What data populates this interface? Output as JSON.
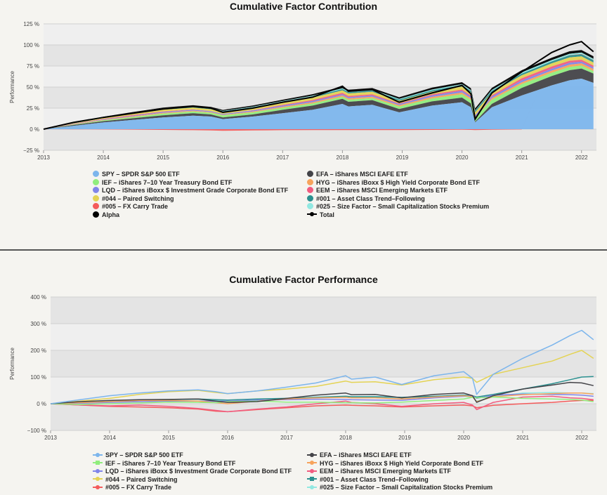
{
  "chart_data": [
    {
      "type": "area",
      "title": "Cumulative Factor Contribution",
      "ylabel": "Performance",
      "xlim": [
        2013.0,
        2022.25
      ],
      "ylim": [
        -25,
        125
      ],
      "yticks": [
        -25,
        0,
        25,
        50,
        75,
        100,
        125
      ],
      "ytick_labels": [
        "−25 %",
        "0 %",
        "25 %",
        "50 %",
        "75 %",
        "100 %",
        "125 %"
      ],
      "xticks": [
        "2013",
        "2014",
        "2015",
        "2016",
        "2017",
        "2018",
        "2019",
        "2020",
        "2021",
        "2022"
      ],
      "stacked": true,
      "x": [
        2013.0,
        2013.5,
        2014.0,
        2014.5,
        2015.0,
        2015.5,
        2015.8,
        2016.0,
        2016.5,
        2017.0,
        2017.5,
        2018.0,
        2018.1,
        2018.5,
        2018.95,
        2019.5,
        2020.0,
        2020.15,
        2020.22,
        2020.5,
        2021.0,
        2021.5,
        2021.8,
        2022.0,
        2022.2
      ],
      "series": [
        {
          "name": "SPY – SPDR S&P 500 ETF",
          "color": "#7cb5ec",
          "values": [
            0,
            4,
            8,
            11,
            14,
            16,
            15,
            12,
            15,
            19,
            23,
            30,
            27,
            29,
            20,
            28,
            32,
            26,
            8,
            26,
            40,
            52,
            58,
            60,
            55
          ]
        },
        {
          "name": "EFA – iShares MSCI EAFE ETF",
          "color": "#434348",
          "values": [
            0,
            1,
            1.5,
            2,
            2.5,
            3,
            2.5,
            2,
            2.5,
            4,
            5,
            6,
            5.5,
            5.5,
            4,
            5,
            5.5,
            4.5,
            1,
            4,
            9,
            11,
            12,
            12,
            11
          ]
        },
        {
          "name": "IEF – iShares 7–10 Year Treasury Bond ETF",
          "color": "#90ed7d",
          "values": [
            0,
            0.5,
            1,
            1.5,
            2,
            2,
            2,
            2.5,
            2.5,
            2.5,
            2.5,
            2.5,
            2.5,
            2.5,
            3,
            3.5,
            4,
            4.5,
            5,
            5,
            4.5,
            4,
            4,
            3.5,
            3
          ]
        },
        {
          "name": "HYG – iShares iBoxx $ High Yield Corporate Bond ETF",
          "color": "#f7a35c",
          "values": [
            0,
            0.3,
            0.6,
            0.8,
            1,
            1,
            0.8,
            0.6,
            1,
            1.2,
            1.5,
            1.6,
            1.6,
            1.6,
            1.4,
            1.8,
            2,
            1.8,
            0.8,
            1.8,
            2.2,
            2.5,
            2.6,
            2.6,
            2.4
          ]
        },
        {
          "name": "LQD – iShares iBoxx $ Investment Grade Corporate Bond ETF",
          "color": "#8085e9",
          "values": [
            0,
            0.3,
            0.6,
            0.8,
            1,
            1,
            1,
            1,
            1.2,
            1.3,
            1.4,
            1.4,
            1.4,
            1.4,
            1.4,
            1.8,
            2,
            2,
            1.5,
            2,
            2.2,
            2.2,
            2.2,
            2.1,
            2
          ]
        },
        {
          "name": "EEM – iShares MSCI Emerging Markets ETF",
          "color": "#f15c80",
          "values": [
            0,
            0.3,
            0.5,
            0.7,
            0.6,
            0.4,
            0.2,
            0,
            0.4,
            0.8,
            1.2,
            1.6,
            1.4,
            1.3,
            0.8,
            1.2,
            1.5,
            1.2,
            0.2,
            1.4,
            2.5,
            2.6,
            2.4,
            2.2,
            2
          ]
        },
        {
          "name": "#044 – Paired Switching",
          "color": "#e4d354",
          "values": [
            0,
            0.5,
            1,
            1.5,
            2,
            2.2,
            2.2,
            2.2,
            2.4,
            2.6,
            2.8,
            3,
            3,
            3,
            3,
            3.2,
            3.5,
            3.5,
            3.5,
            3.5,
            3.5,
            3.8,
            4,
            4,
            3.8
          ]
        },
        {
          "name": "#001 – Asset Class Trend–Following",
          "color": "#2b908f",
          "values": [
            0,
            0.3,
            0.6,
            0.8,
            1,
            1,
            1,
            1,
            1.1,
            1.2,
            1.4,
            1.5,
            1.5,
            1.5,
            1.5,
            1.6,
            1.8,
            1.8,
            1.8,
            1.9,
            2,
            2.3,
            2.5,
            2.6,
            2.6
          ]
        },
        {
          "name": "#005 – FX Carry Trade",
          "color": "#f45b5b",
          "values": [
            0,
            -0.2,
            -0.3,
            -0.5,
            -0.8,
            -1.2,
            -1.5,
            -1.8,
            -1.5,
            -1.2,
            -1,
            -1,
            -1,
            -1,
            -1,
            -0.8,
            -0.6,
            -0.8,
            -1,
            -0.6,
            -0.3,
            0,
            0.2,
            0.3,
            0.3
          ]
        },
        {
          "name": "#025 – Size Factor – Small Capitalization Stocks Premium",
          "color": "#91e8e1",
          "values": [
            0,
            0.2,
            0.4,
            0.5,
            0.6,
            0.6,
            0.5,
            0.4,
            0.6,
            0.8,
            1,
            1,
            1,
            1,
            0.8,
            1,
            1.1,
            1,
            0.5,
            1,
            1.5,
            1.6,
            1.6,
            1.6,
            1.5
          ]
        },
        {
          "name": "Alpha",
          "color": "#000000",
          "values": [
            0,
            0.3,
            0.6,
            0.8,
            1,
            1.2,
            1.2,
            1.2,
            1.4,
            1.6,
            1.8,
            2,
            2,
            2,
            2,
            2.2,
            2.4,
            2.4,
            2.4,
            2.5,
            2.6,
            2.8,
            3,
            3,
            3
          ]
        }
      ],
      "total": {
        "name": "Total",
        "color": "#000000",
        "values": [
          0,
          8,
          14,
          19,
          24,
          27,
          25,
          20,
          25,
          32,
          38,
          51,
          45,
          47,
          32,
          43,
          52,
          42,
          12,
          43,
          68,
          91,
          100,
          104,
          92
        ]
      }
    },
    {
      "type": "line",
      "title": "Cumulative Factor Performance",
      "ylabel": "Performance",
      "xlim": [
        2013.0,
        2022.25
      ],
      "ylim": [
        -100,
        400
      ],
      "yticks": [
        -100,
        0,
        100,
        200,
        300,
        400
      ],
      "ytick_labels": [
        "−100 %",
        "0 %",
        "100 %",
        "200 %",
        "300 %",
        "400 %"
      ],
      "xticks": [
        "2013",
        "2014",
        "2015",
        "2016",
        "2017",
        "2018",
        "2019",
        "2020",
        "2021",
        "2022"
      ],
      "x": [
        2013.0,
        2013.5,
        2014.0,
        2014.5,
        2015.0,
        2015.5,
        2015.8,
        2016.0,
        2016.5,
        2017.0,
        2017.5,
        2018.0,
        2018.1,
        2018.5,
        2018.95,
        2019.5,
        2020.0,
        2020.15,
        2020.22,
        2020.5,
        2021.0,
        2021.5,
        2021.8,
        2022.0,
        2022.2
      ],
      "series": [
        {
          "name": "SPY – SPDR S&P 500 ETF",
          "color": "#7cb5ec",
          "marker": "circle",
          "values": [
            0,
            15,
            30,
            40,
            48,
            52,
            45,
            38,
            48,
            62,
            78,
            105,
            92,
            100,
            72,
            105,
            120,
            95,
            35,
            110,
            170,
            220,
            255,
            275,
            240
          ]
        },
        {
          "name": "EFA – iShares MSCI EAFE ETF",
          "color": "#434348",
          "marker": "diamond",
          "values": [
            0,
            8,
            12,
            15,
            16,
            18,
            10,
            5,
            8,
            20,
            32,
            40,
            34,
            35,
            22,
            35,
            40,
            30,
            5,
            30,
            55,
            70,
            80,
            78,
            68
          ]
        },
        {
          "name": "IEF – iShares 7–10 Year Treasury Bond ETF",
          "color": "#90ed7d",
          "marker": "square",
          "values": [
            0,
            -3,
            0,
            3,
            6,
            5,
            4,
            8,
            10,
            6,
            6,
            4,
            4,
            3,
            6,
            12,
            18,
            24,
            22,
            25,
            20,
            18,
            16,
            14,
            8
          ]
        },
        {
          "name": "HYG – iShares iBoxx $ High Yield Corporate Bond ETF",
          "color": "#f7a35c",
          "marker": "triangle",
          "values": [
            0,
            4,
            8,
            12,
            12,
            10,
            4,
            0,
            10,
            18,
            22,
            24,
            22,
            22,
            18,
            25,
            30,
            26,
            8,
            26,
            34,
            38,
            40,
            40,
            36
          ]
        },
        {
          "name": "LQD – iShares iBoxx $ Investment Grade Corporate Bond ETF",
          "color": "#8085e9",
          "marker": "triangle-down",
          "values": [
            0,
            2,
            5,
            8,
            10,
            10,
            9,
            10,
            14,
            15,
            17,
            16,
            15,
            14,
            13,
            22,
            28,
            30,
            20,
            32,
            36,
            35,
            34,
            32,
            28
          ]
        },
        {
          "name": "EEM – iShares MSCI Emerging Markets ETF",
          "color": "#f15c80",
          "marker": "circle",
          "values": [
            0,
            -5,
            -8,
            -5,
            -10,
            -18,
            -25,
            -30,
            -20,
            -12,
            0,
            10,
            5,
            0,
            -10,
            0,
            5,
            -5,
            -22,
            5,
            25,
            28,
            22,
            20,
            15
          ]
        },
        {
          "name": "#044 – Paired Switching",
          "color": "#e4d354",
          "marker": "diamond",
          "values": [
            0,
            10,
            20,
            35,
            45,
            50,
            42,
            38,
            48,
            55,
            65,
            85,
            80,
            82,
            70,
            90,
            100,
            95,
            80,
            110,
            135,
            160,
            185,
            200,
            170
          ]
        },
        {
          "name": "#001 – Asset Class Trend–Following",
          "color": "#2b908f",
          "marker": "square",
          "values": [
            0,
            3,
            8,
            12,
            15,
            18,
            15,
            14,
            18,
            20,
            24,
            28,
            26,
            26,
            24,
            28,
            32,
            30,
            25,
            35,
            55,
            75,
            90,
            100,
            102
          ]
        },
        {
          "name": "#005 – FX Carry Trade",
          "color": "#f45b5b",
          "marker": "triangle",
          "values": [
            0,
            -5,
            -10,
            -12,
            -15,
            -20,
            -28,
            -30,
            -22,
            -15,
            -8,
            -5,
            -6,
            -8,
            -12,
            -8,
            -5,
            -8,
            -15,
            -6,
            0,
            5,
            10,
            12,
            12
          ]
        },
        {
          "name": "#025 – Size Factor – Small Capitalization Stocks Premium",
          "color": "#91e8e1",
          "marker": "triangle-down",
          "values": [
            0,
            6,
            10,
            14,
            16,
            16,
            12,
            10,
            15,
            20,
            25,
            28,
            27,
            27,
            22,
            26,
            28,
            24,
            10,
            26,
            40,
            42,
            40,
            40,
            38
          ]
        }
      ]
    }
  ]
}
